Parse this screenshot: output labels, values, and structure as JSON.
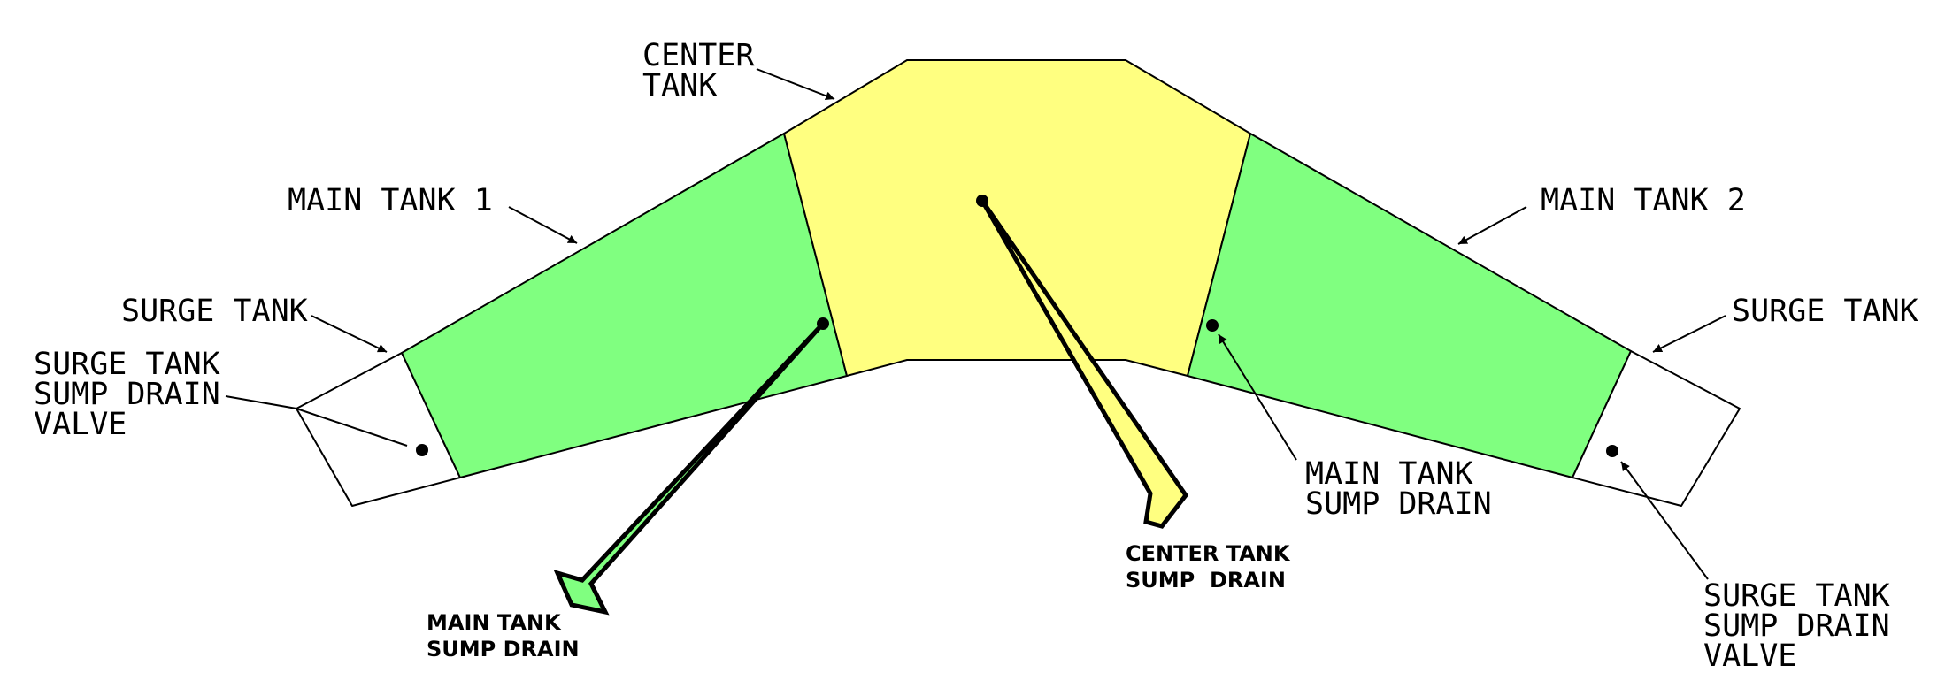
{
  "colors": {
    "center_tank": "#ffff80",
    "main_tank": "#80ff80",
    "surge_tank": "#ffffff",
    "outline": "#000000"
  },
  "labels": {
    "center_tank": [
      "CENTER",
      "TANK"
    ],
    "main_tank_1": "MAIN TANK 1",
    "main_tank_2": "MAIN TANK 2",
    "surge_tank_left": "SURGE TANK",
    "surge_tank_right": "SURGE TANK",
    "surge_valve_left": [
      "SURGE TANK",
      "SUMP DRAIN",
      "VALVE"
    ],
    "surge_valve_right": [
      "SURGE TANK",
      "SUMP DRAIN",
      "VALVE"
    ],
    "main_sump_right": [
      "MAIN TANK",
      "SUMP DRAIN"
    ],
    "main_sump_left_small": [
      "MAIN TANK",
      "SUMP DRAIN"
    ],
    "center_sump_small": [
      "CENTER TANK",
      "SUMP  DRAIN"
    ]
  }
}
